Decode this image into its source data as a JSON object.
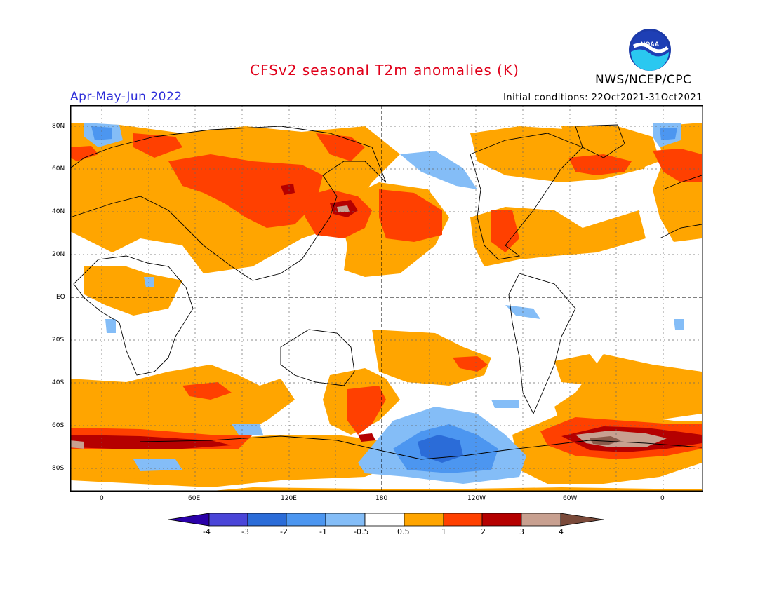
{
  "header": {
    "title": "CFSv2 seasonal T2m anomalies (K)",
    "org": "NWS/NCEP/CPC",
    "period": "Apr-May-Jun 2022",
    "initial_conditions": "Initial conditions: 22Oct2021-31Oct2021",
    "logo_text": "NOAA"
  },
  "map": {
    "lat_labels": [
      "80N",
      "60N",
      "40N",
      "20N",
      "EQ",
      "20S",
      "40S",
      "60S",
      "80S"
    ],
    "lon_labels": [
      "0",
      "60E",
      "120E",
      "180",
      "120W",
      "60W",
      "0"
    ]
  },
  "colorbar": {
    "labels": [
      "-4",
      "-3",
      "-2",
      "-1",
      "-0.5",
      "0.5",
      "1",
      "2",
      "3",
      "4"
    ],
    "colors": [
      "#2a00a8",
      "#4a45d8",
      "#2b6cd8",
      "#4c96f0",
      "#84bdf7",
      "#ffffff",
      "#ffa500",
      "#ff4000",
      "#b50000",
      "#c8a090",
      "#7a4a3a"
    ]
  }
}
